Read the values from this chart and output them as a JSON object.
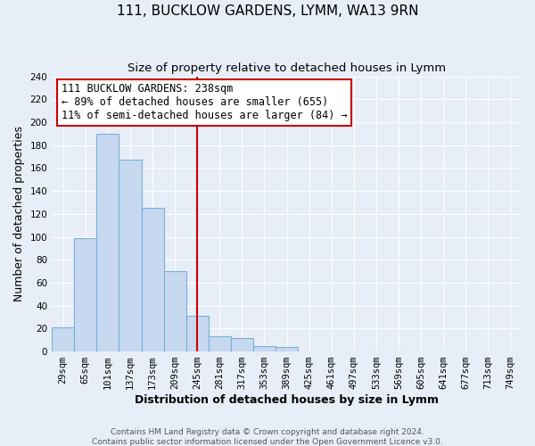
{
  "title": "111, BUCKLOW GARDENS, LYMM, WA13 9RN",
  "subtitle": "Size of property relative to detached houses in Lymm",
  "xlabel": "Distribution of detached houses by size in Lymm",
  "ylabel": "Number of detached properties",
  "bar_labels": [
    "29sqm",
    "65sqm",
    "101sqm",
    "137sqm",
    "173sqm",
    "209sqm",
    "245sqm",
    "281sqm",
    "317sqm",
    "353sqm",
    "389sqm",
    "425sqm",
    "461sqm",
    "497sqm",
    "533sqm",
    "569sqm",
    "605sqm",
    "641sqm",
    "677sqm",
    "713sqm",
    "749sqm"
  ],
  "bar_values": [
    21,
    99,
    190,
    167,
    125,
    70,
    31,
    13,
    12,
    5,
    4,
    0,
    0,
    0,
    0,
    0,
    0,
    0,
    0,
    0,
    0
  ],
  "bar_color": "#c6d9f0",
  "bar_edge_color": "#7bafd4",
  "ylim": [
    0,
    240
  ],
  "yticks": [
    0,
    20,
    40,
    60,
    80,
    100,
    120,
    140,
    160,
    180,
    200,
    220,
    240
  ],
  "annotation_line_x_label": "245sqm",
  "annotation_line_color": "#cc0000",
  "annotation_box_text": "111 BUCKLOW GARDENS: 238sqm\n← 89% of detached houses are smaller (655)\n11% of semi-detached houses are larger (84) →",
  "footer1": "Contains HM Land Registry data © Crown copyright and database right 2024.",
  "footer2": "Contains public sector information licensed under the Open Government Licence v3.0.",
  "background_color": "#e8eef8",
  "grid_color": "#ffffff",
  "title_fontsize": 11,
  "subtitle_fontsize": 9.5,
  "axis_label_fontsize": 9,
  "tick_fontsize": 7.5,
  "annotation_fontsize": 8.5,
  "footer_fontsize": 6.5
}
